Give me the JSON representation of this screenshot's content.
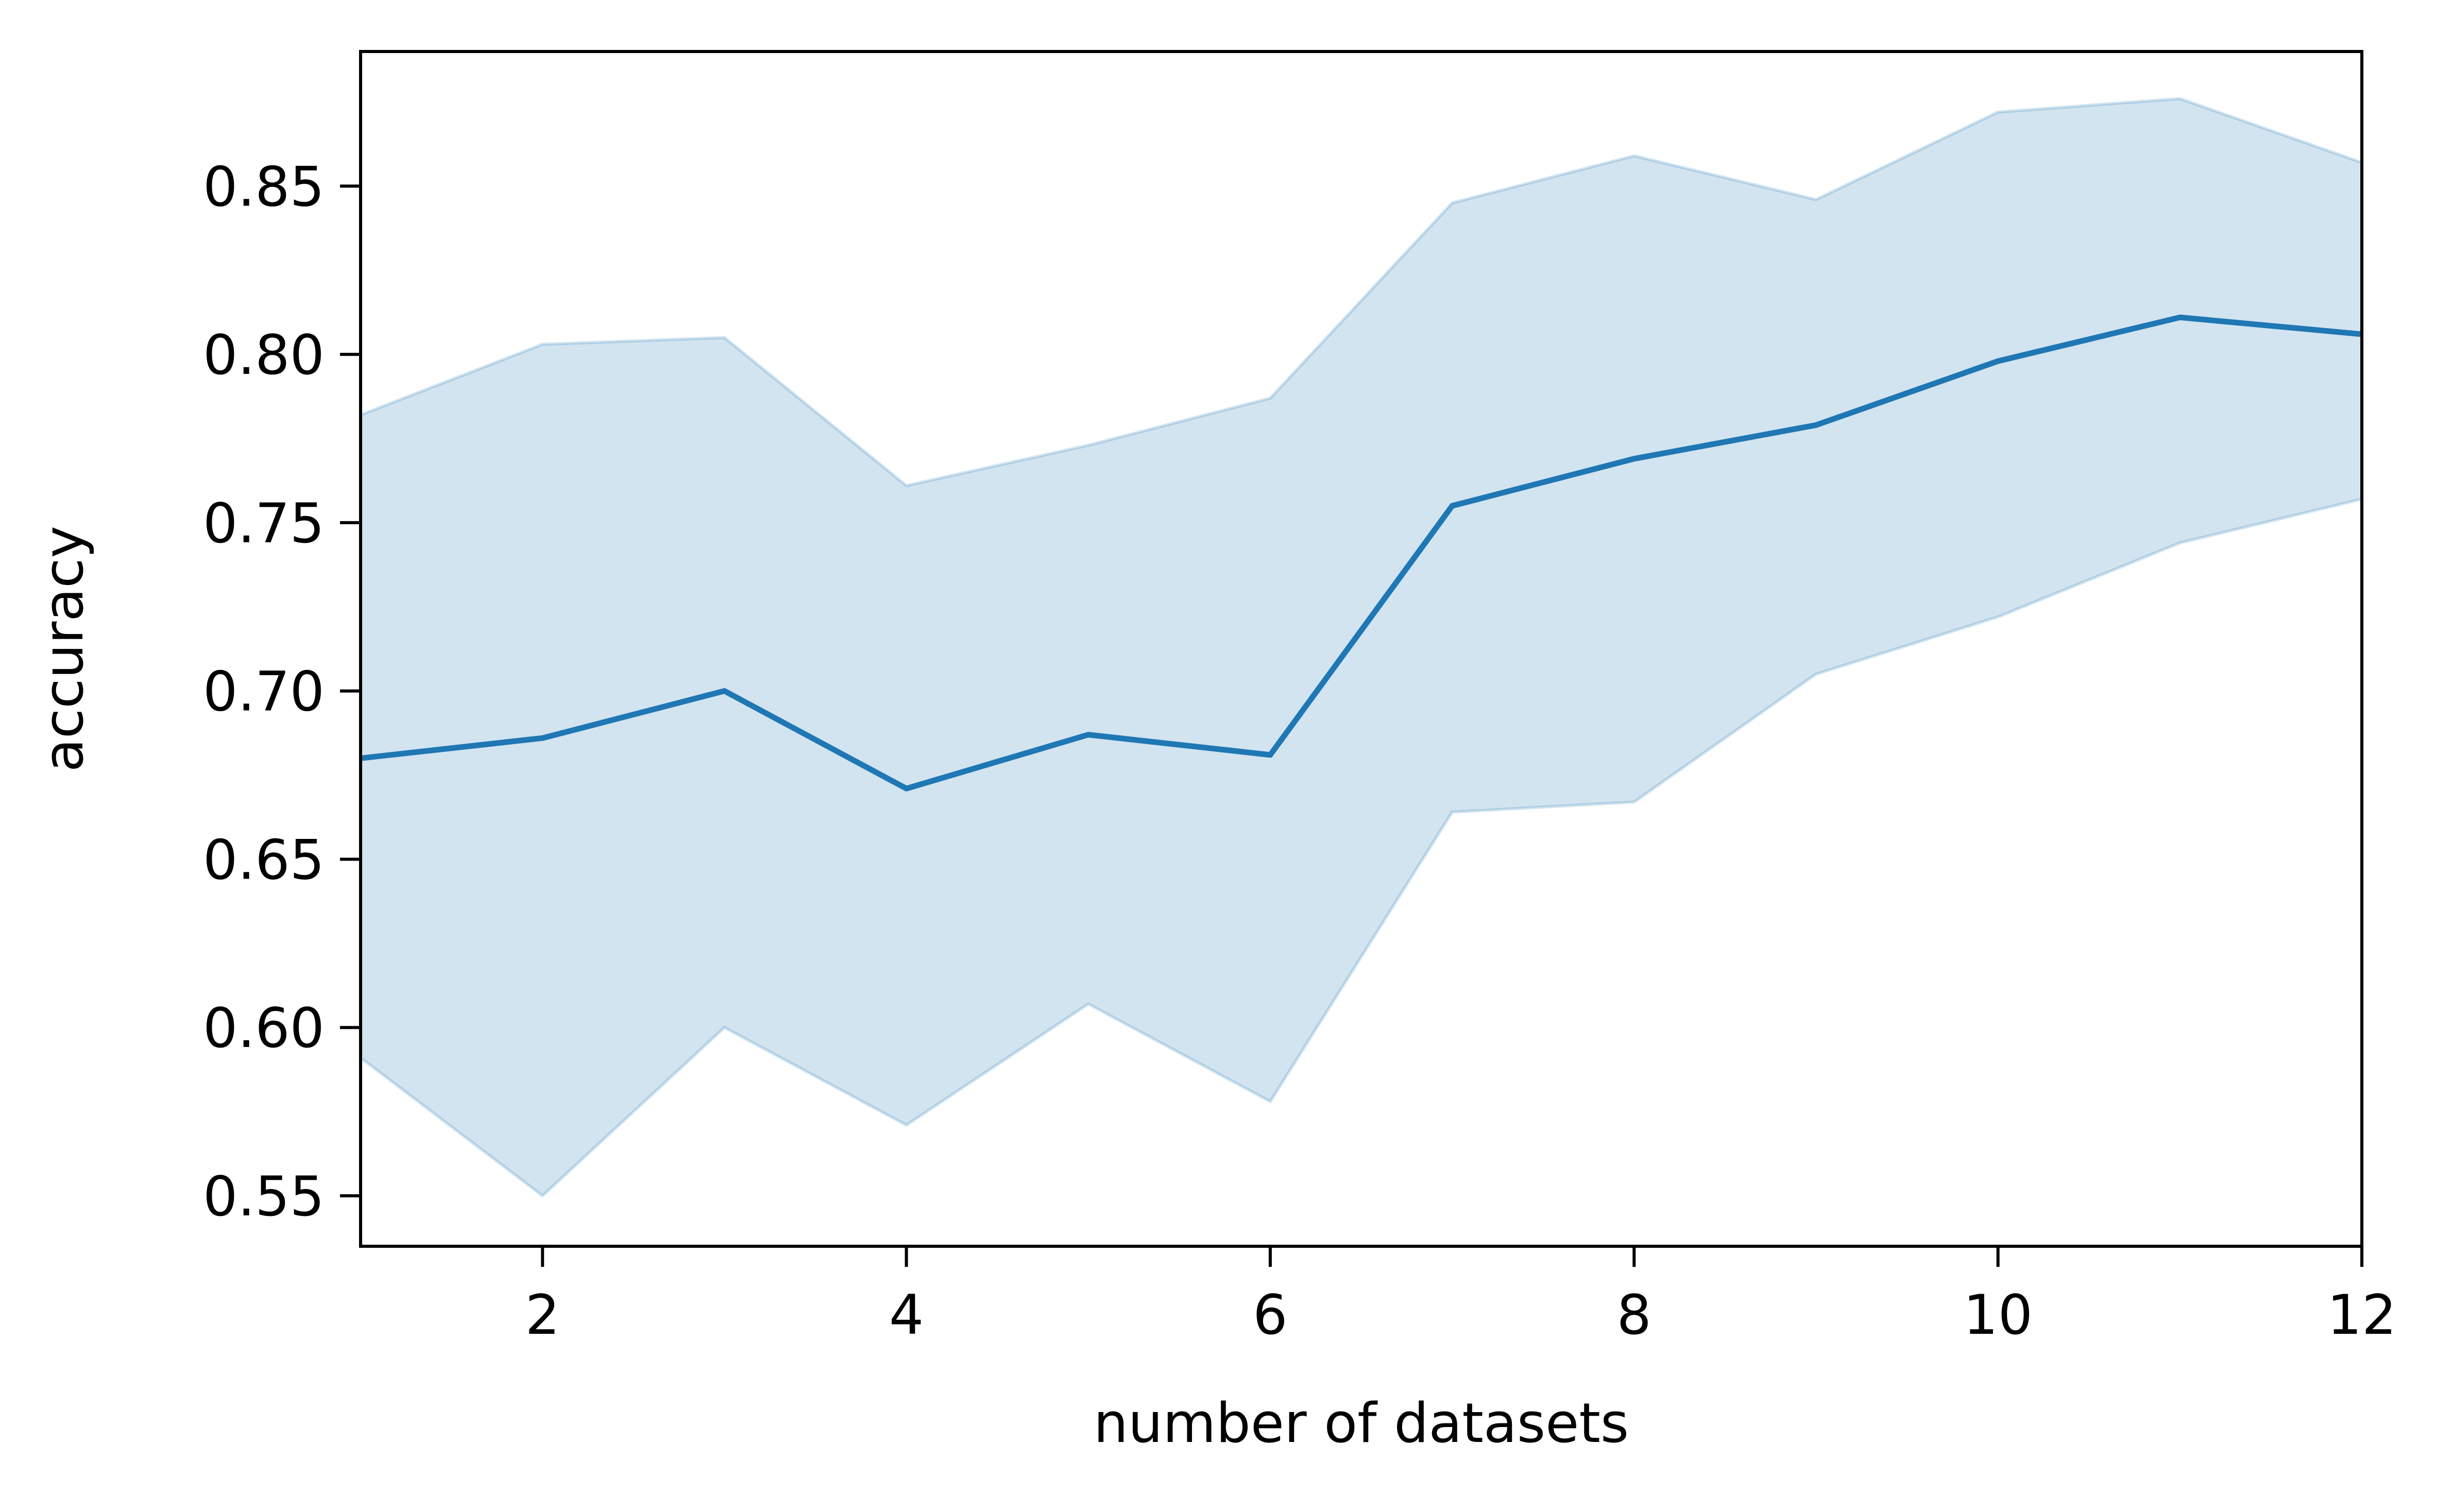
{
  "chart_data": {
    "type": "line",
    "title": "",
    "xlabel": "number of datasets",
    "ylabel": "accuracy",
    "xlim": [
      1,
      12
    ],
    "ylim": [
      0.535,
      0.89
    ],
    "x_ticks": [
      2,
      4,
      6,
      8,
      10,
      12
    ],
    "x_tick_labels": [
      "2",
      "4",
      "6",
      "8",
      "10",
      "12"
    ],
    "y_ticks": [
      0.55,
      0.6,
      0.65,
      0.7,
      0.75,
      0.8,
      0.85
    ],
    "y_tick_labels": [
      "0.55",
      "0.60",
      "0.65",
      "0.70",
      "0.75",
      "0.80",
      "0.85"
    ],
    "grid": false,
    "legend": "none",
    "x": [
      1,
      2,
      3,
      4,
      5,
      6,
      7,
      8,
      9,
      10,
      11,
      12
    ],
    "series": [
      {
        "values": [
          0.68,
          0.686,
          0.7,
          0.671,
          0.687,
          0.681,
          0.755,
          0.769,
          0.779,
          0.798,
          0.811,
          0.806
        ],
        "band_lower": [
          0.591,
          0.55,
          0.6,
          0.571,
          0.607,
          0.578,
          0.664,
          0.667,
          0.705,
          0.722,
          0.744,
          0.757
        ],
        "band_upper": [
          0.782,
          0.803,
          0.805,
          0.761,
          0.773,
          0.787,
          0.845,
          0.859,
          0.846,
          0.872,
          0.876,
          0.857
        ],
        "color": "#1f77b4",
        "band_color": "#1f77b4"
      }
    ]
  }
}
